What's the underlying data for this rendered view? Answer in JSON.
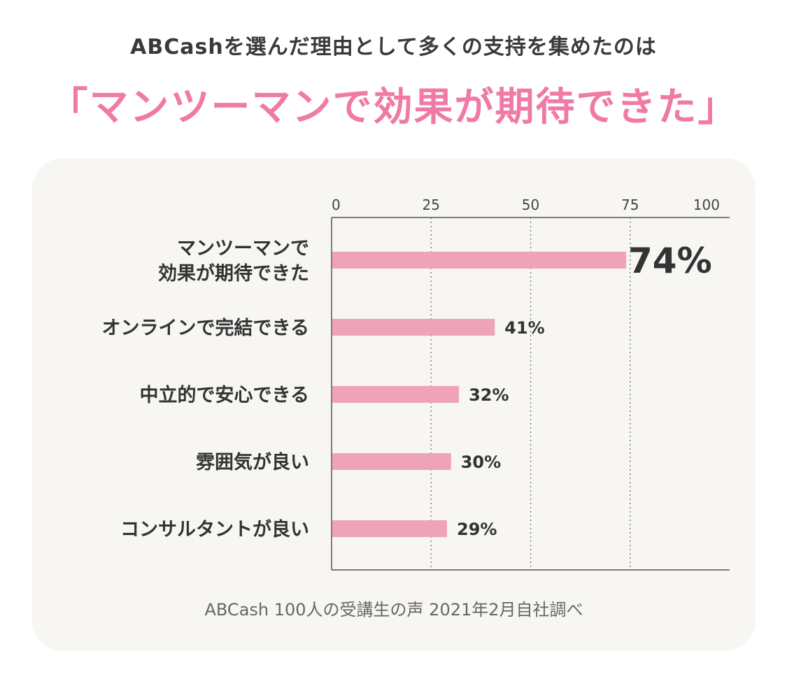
{
  "header": {
    "subtitle": "ABCashを選んだ理由として多くの支持を集めたのは",
    "headline": "「マンツーマンで効果が期待できた」"
  },
  "chart_data": {
    "type": "bar",
    "orientation": "horizontal",
    "categories": [
      [
        "マンツーマンで",
        "効果が期待できた"
      ],
      [
        "オンラインで完結できる"
      ],
      [
        "中立的で安心できる"
      ],
      [
        "雰囲気が良い"
      ],
      [
        "コンサルタントが良い"
      ]
    ],
    "values": [
      74,
      41,
      32,
      30,
      29
    ],
    "value_labels": [
      "74%",
      "41%",
      "32%",
      "30%",
      "29%"
    ],
    "xlim": [
      0,
      100
    ],
    "x_ticks": [
      "0",
      "25",
      "50",
      "75",
      "100"
    ],
    "tick_values": [
      0,
      25,
      50,
      75,
      100
    ],
    "grid": true,
    "bar_color": "#eea3ba",
    "highlight_index": 0
  },
  "footer": {
    "source": "ABCash 100人の受講生の声  2021年2月自社調べ"
  }
}
